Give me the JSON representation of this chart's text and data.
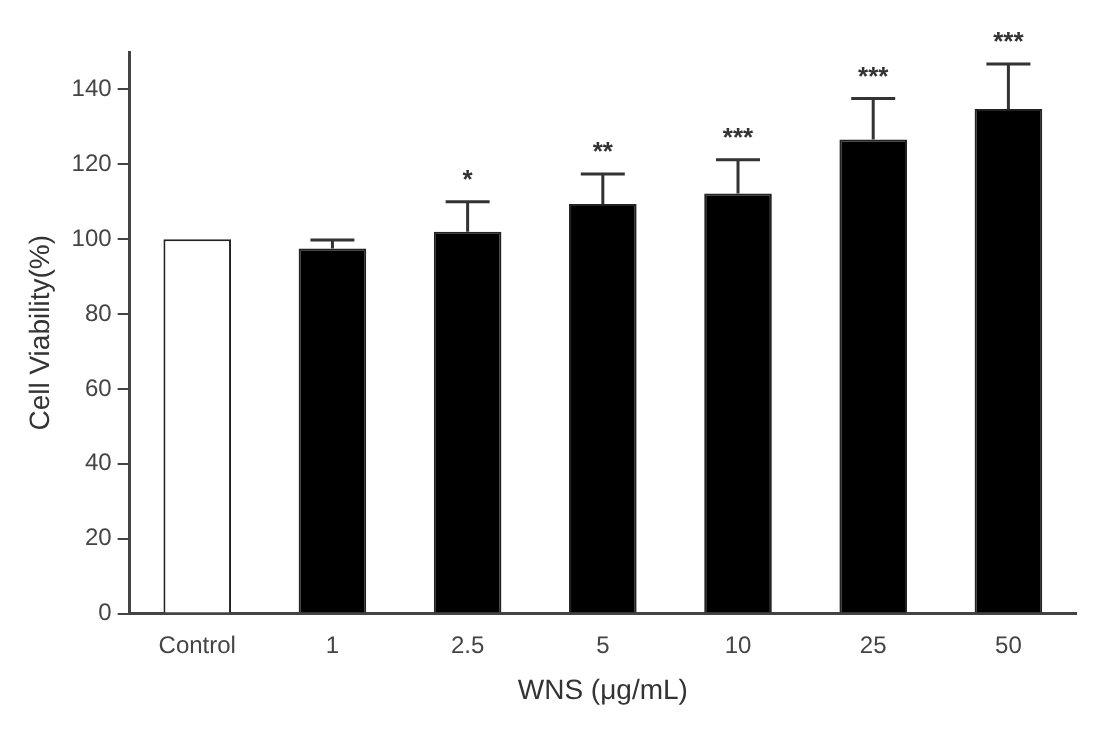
{
  "chart_data": {
    "type": "bar",
    "xlabel": "WNS (μg/mL)",
    "ylabel": "Cell Viability(%)",
    "categories": [
      "Control",
      "1",
      "2.5",
      "5",
      "10",
      "25",
      "50"
    ],
    "values": [
      100,
      97.5,
      102,
      109.4,
      112.2,
      126.6,
      134.8
    ],
    "colors": [
      "#ffffff",
      "#000000",
      "#000000",
      "#000000",
      "#000000",
      "#000000",
      "#000000"
    ],
    "errors": [
      null,
      [
        97.5,
        99.8
      ],
      [
        102,
        110
      ],
      [
        109.4,
        117.4
      ],
      [
        112.2,
        121.2
      ],
      [
        126.6,
        137.6
      ],
      [
        134.8,
        146.8
      ]
    ],
    "ylim": [
      0,
      150
    ],
    "yticks": [
      0,
      20,
      40,
      60,
      80,
      100,
      120,
      140
    ],
    "grid": false,
    "legend": false,
    "annotations": [
      "*",
      "**",
      "***",
      "***",
      "***"
    ]
  }
}
